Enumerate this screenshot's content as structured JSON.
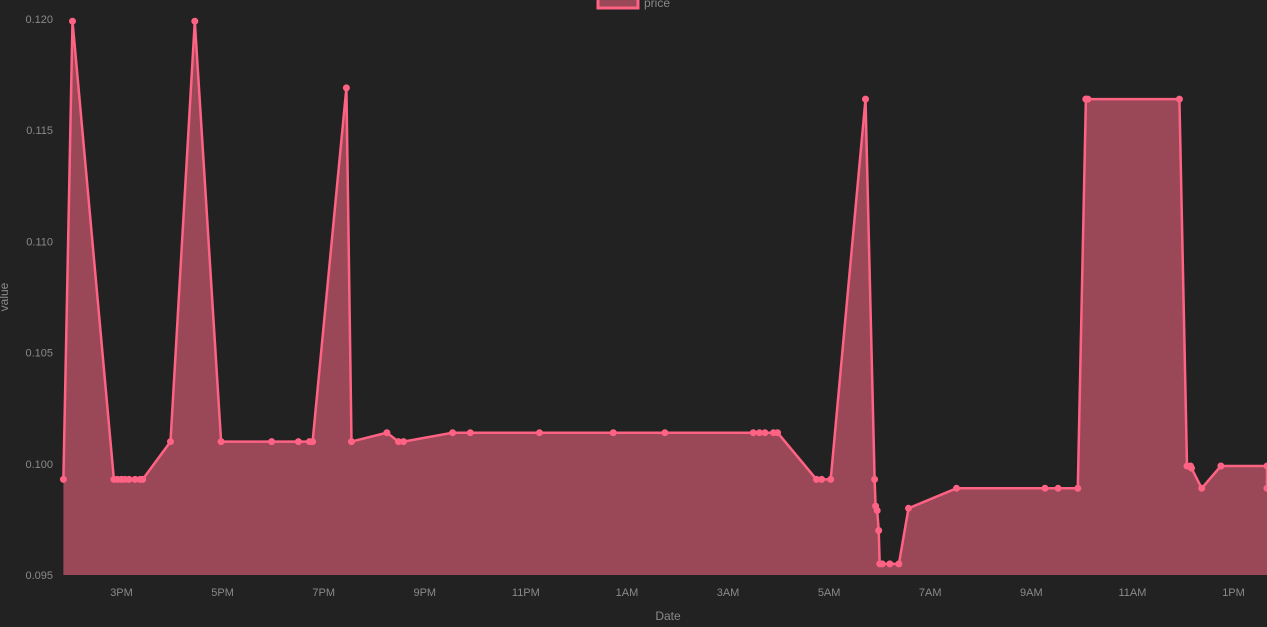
{
  "chart_data": {
    "type": "area",
    "xlabel": "Date",
    "ylabel": "value",
    "ylim": [
      0.095,
      0.12
    ],
    "y_ticks": [
      "0.095",
      "0.100",
      "0.105",
      "0.110",
      "0.115",
      "0.120"
    ],
    "x_ticks": [
      "3PM",
      "5PM",
      "7PM",
      "9PM",
      "11PM",
      "1AM",
      "3AM",
      "5AM",
      "7AM",
      "9AM",
      "11AM",
      "1PM"
    ],
    "grid": false,
    "legend": {
      "position": "top-center"
    },
    "colors": {
      "line": "#ff6384",
      "fill": "#9a4758",
      "background": "#222222",
      "text": "#8a8a8a"
    },
    "series": [
      {
        "name": "price",
        "x_hours": [
          13.85,
          14.03,
          14.85,
          14.92,
          15.0,
          15.07,
          15.15,
          15.27,
          15.37,
          15.42,
          15.97,
          16.45,
          16.97,
          17.97,
          18.5,
          18.72,
          18.78,
          19.45,
          19.55,
          20.25,
          20.48,
          20.58,
          21.55,
          21.9,
          23.27,
          24.73,
          25.75,
          27.5,
          27.62,
          27.73,
          27.9,
          27.98,
          28.75,
          28.85,
          29.03,
          29.72,
          29.9,
          29.92,
          29.95,
          29.98,
          30.0,
          30.05,
          30.2,
          30.38,
          30.57,
          31.52,
          33.27,
          33.53,
          33.92,
          34.08,
          34.12,
          34.08,
          35.93,
          36.08,
          36.15,
          36.17,
          36.37,
          36.75,
          38.0,
          38.22,
          39.38
        ],
        "values": [
          0.0993,
          0.1199,
          0.0993,
          0.0993,
          0.0993,
          0.0993,
          0.0993,
          0.0993,
          0.0993,
          0.0993,
          0.101,
          0.1199,
          0.101,
          0.101,
          0.101,
          0.101,
          0.101,
          0.1169,
          0.101,
          0.1014,
          0.101,
          0.101,
          0.1014,
          0.1014,
          0.1014,
          0.1014,
          0.1014,
          0.1014,
          0.1014,
          0.1014,
          0.1014,
          0.1014,
          0.0993,
          0.0993,
          0.0993,
          0.1164,
          0.0993,
          0.0981,
          0.0979,
          0.097,
          0.0955,
          0.0955,
          0.0955,
          0.0955,
          0.098,
          0.0989,
          0.0989,
          0.0989,
          0.0989,
          0.1164,
          0.1164,
          0.1164,
          0.1164,
          0.0999,
          0.0999,
          0.0998,
          0.0989,
          0.0999,
          0.0999,
          0.0989,
          0.0989
        ]
      }
    ]
  }
}
